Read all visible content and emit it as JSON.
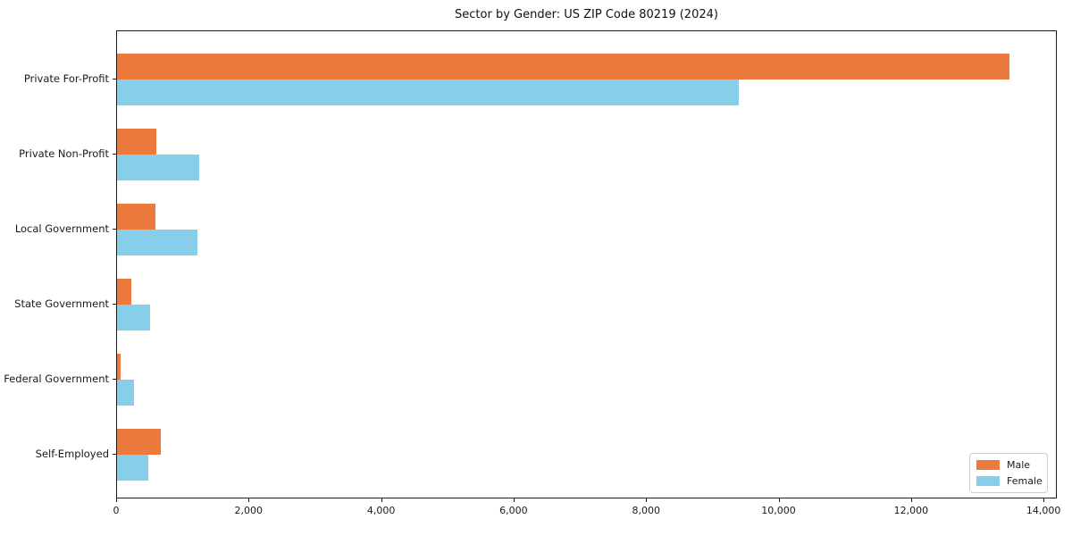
{
  "title": "Sector by Gender: US ZIP Code 80219 (2024)",
  "chart_data": {
    "type": "bar",
    "orientation": "horizontal",
    "title": "Sector by Gender: US ZIP Code 80219 (2024)",
    "xlabel": "",
    "ylabel": "",
    "categories": [
      "Private For-Profit",
      "Private Non-Profit",
      "Local Government",
      "State Government",
      "Federal Government",
      "Self-Employed"
    ],
    "series": [
      {
        "name": "Male",
        "color": "#ec7a3d",
        "values": [
          13500,
          590,
          575,
          210,
          55,
          665
        ]
      },
      {
        "name": "Female",
        "color": "#87ceeb",
        "values": [
          9400,
          1240,
          1215,
          495,
          250,
          470
        ]
      }
    ],
    "xlim": [
      0,
      14200
    ],
    "xticks": [
      0,
      2000,
      4000,
      6000,
      8000,
      10000,
      12000,
      14000
    ],
    "xtick_labels": [
      "0",
      "2,000",
      "4,000",
      "6,000",
      "8,000",
      "10,000",
      "12,000",
      "14,000"
    ],
    "grid": false,
    "legend_position": "lower right"
  },
  "legend": {
    "items": [
      {
        "label": "Male",
        "color": "#ec7a3d"
      },
      {
        "label": "Female",
        "color": "#87ceeb"
      }
    ]
  }
}
